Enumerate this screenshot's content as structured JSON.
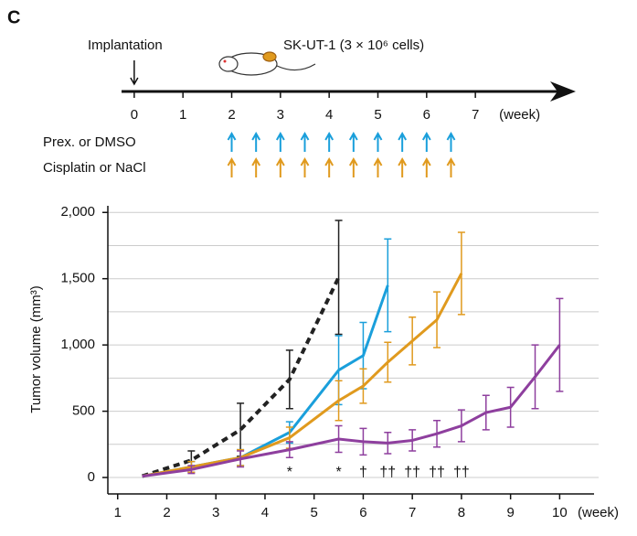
{
  "panel_label": "C",
  "timeline": {
    "xlim": [
      -0.26,
      9.06
    ],
    "xticks": [
      0,
      1,
      2,
      3,
      4,
      5,
      6,
      7
    ],
    "x_unit": "(week)",
    "implantation": {
      "label": "Implantation",
      "week": 0
    },
    "cell_line": "SK-UT-1 (3 × 10⁶ cells)",
    "rows": [
      {
        "label": "Prex. or DMSO",
        "color": "#1a9fdb",
        "weeks": [
          2,
          2.5,
          3,
          3.5,
          4,
          4.5,
          5,
          5.5,
          6,
          6.5
        ]
      },
      {
        "label": "Cisplatin or NaCl",
        "color": "#e09a1e",
        "weeks": [
          2,
          2.5,
          3,
          3.5,
          4,
          4.5,
          5,
          5.5,
          6,
          6.5
        ]
      }
    ]
  },
  "chart_data": {
    "type": "line",
    "y_label": "Tumor volume (mm³)",
    "x_label": "(week)",
    "xlim": [
      0.8,
      10.7
    ],
    "xticks": [
      1,
      2,
      3,
      4,
      5,
      6,
      7,
      8,
      9,
      10
    ],
    "ylim": [
      -124,
      2050
    ],
    "yticks": [
      0,
      500,
      {
        "value": 1000,
        "label": "1,000"
      },
      {
        "value": 1500,
        "label": "1,500"
      },
      {
        "value": 2000,
        "label": "2,000"
      }
    ],
    "grid_lines": [
      0,
      250,
      500,
      750,
      1000,
      1250,
      1500,
      1750,
      2000
    ],
    "series": [
      {
        "color": "#222222",
        "dashed": true,
        "x": [
          1.5,
          2.5,
          3.5,
          4.5,
          5.5
        ],
        "values": [
          10,
          130,
          360,
          740,
          1510
        ],
        "errors": [
          null,
          70,
          200,
          220,
          430
        ]
      },
      {
        "color": "#1a9fdb",
        "dashed": false,
        "x": [
          1.5,
          2.5,
          3.5,
          4.5,
          5.5,
          6,
          6.5
        ],
        "values": [
          10,
          80,
          150,
          340,
          810,
          920,
          1450
        ],
        "errors": [
          null,
          40,
          60,
          80,
          260,
          250,
          350
        ]
      },
      {
        "color": "#e09a1e",
        "dashed": false,
        "x": [
          1.5,
          2.5,
          3.5,
          4.5,
          5.5,
          6,
          6.5,
          7,
          7.5,
          8
        ],
        "values": [
          10,
          80,
          150,
          300,
          580,
          690,
          870,
          1030,
          1190,
          1540
        ],
        "errors": [
          null,
          40,
          60,
          80,
          150,
          130,
          150,
          180,
          210,
          310
        ]
      },
      {
        "color": "#8e3f9e",
        "dashed": false,
        "x": [
          1.5,
          2.5,
          3.5,
          4.5,
          5.5,
          6,
          6.5,
          7,
          7.5,
          8,
          8.5,
          9,
          9.5,
          10
        ],
        "values": [
          10,
          60,
          140,
          210,
          290,
          270,
          260,
          280,
          330,
          390,
          490,
          530,
          760,
          1000
        ],
        "errors": [
          null,
          30,
          60,
          60,
          100,
          100,
          80,
          80,
          100,
          120,
          130,
          150,
          240,
          350
        ]
      }
    ],
    "annotations": [
      {
        "x": 4.5,
        "text": "*"
      },
      {
        "x": 5.5,
        "text": "*"
      },
      {
        "x": 6,
        "text": "†"
      },
      {
        "x": 6.5,
        "text": "††"
      },
      {
        "x": 7,
        "text": "††"
      },
      {
        "x": 7.5,
        "text": "††"
      },
      {
        "x": 8,
        "text": "††"
      }
    ]
  }
}
